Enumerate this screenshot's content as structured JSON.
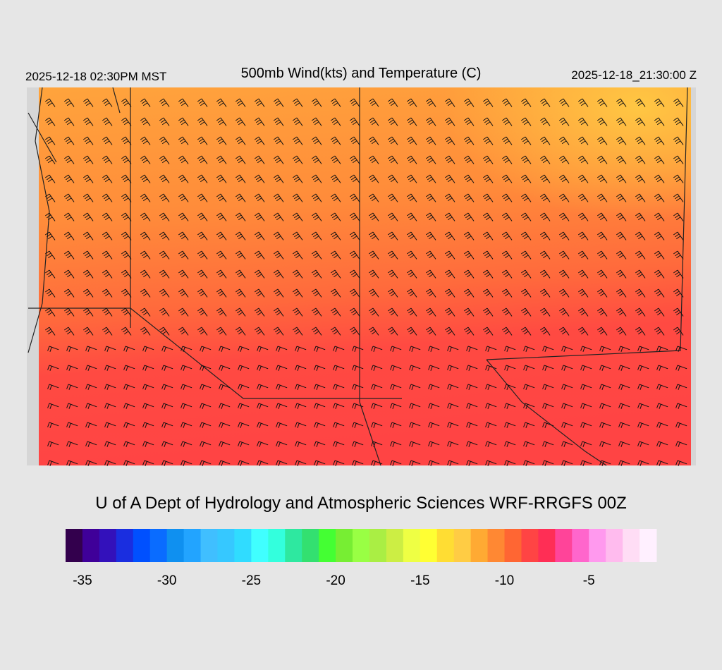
{
  "header": {
    "left": "2025-12-18 02:30PM MST",
    "title": "500mb Wind(kts) and Temperature (C)",
    "right": "2025-12-18_21:30:00 Z"
  },
  "footer": "U of A Dept of Hydrology and Atmospheric Sciences WRF-RRGFS 00Z",
  "colorbar": {
    "range": [
      -36,
      -1
    ],
    "ticks": [
      -35,
      -30,
      -25,
      -20,
      -15,
      -10,
      -5
    ],
    "colors": [
      "#33004d",
      "#3f0099",
      "#3311bb",
      "#1a2ee0",
      "#0050ff",
      "#0a6cff",
      "#0f90f0",
      "#22a4ff",
      "#40bfff",
      "#36c8ff",
      "#30dcff",
      "#40ffff",
      "#33ffdd",
      "#2ee8a0",
      "#33e070",
      "#44ff33",
      "#77ee33",
      "#99ff44",
      "#aaee44",
      "#ccee44",
      "#eeff44",
      "#ffff33",
      "#ffdd33",
      "#ffcc44",
      "#ffaa33",
      "#ff8833",
      "#ff6633",
      "#ff4444",
      "#ff2e55",
      "#ff4499",
      "#ff66cc",
      "#ff99ee",
      "#ffbbee",
      "#ffddf5",
      "#fff0ff"
    ]
  }
}
